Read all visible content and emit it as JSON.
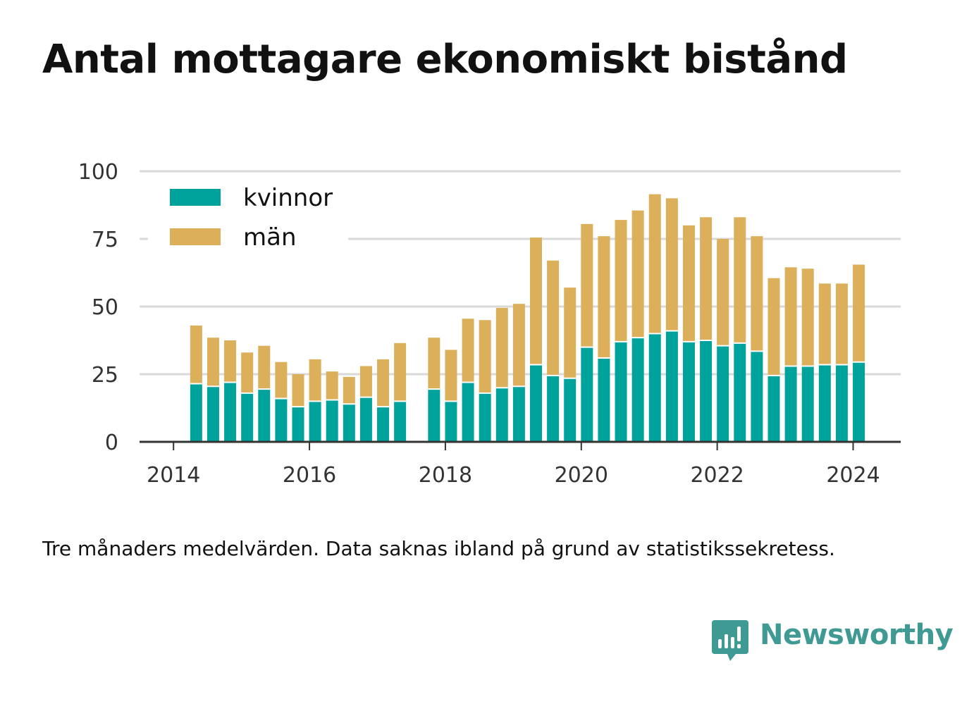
{
  "title": "Antal mottagare ekonomiskt bistånd",
  "footnote": "Tre månaders medelvärden. Data saknas ibland på grund av statistikssekretess.",
  "brand": {
    "name": "Newsworthy",
    "icon": "bar-chart-speech-bubble-icon"
  },
  "colors": {
    "kvinnor": "#00a39b",
    "man": "#dcaf5a",
    "grid": "#d9d9d9",
    "axis": "#333333",
    "tick_text": "#333333"
  },
  "chart_data": {
    "type": "bar",
    "stacked": true,
    "x_tick_labels": [
      "2014",
      "2016",
      "2018",
      "2020",
      "2022",
      "2024"
    ],
    "x_ticks": [
      2014,
      2016,
      2018,
      2020,
      2022,
      2024
    ],
    "xlim": [
      2013.5,
      2024.7
    ],
    "y_tick_labels": [
      "0",
      "25",
      "50",
      "75",
      "100"
    ],
    "y_ticks": [
      0,
      25,
      50,
      75,
      100
    ],
    "ylim": [
      0,
      100
    ],
    "grid": true,
    "legend_position": "top-left",
    "x": [
      "2014-05",
      "2014-08",
      "2014-11",
      "2015-02",
      "2015-05",
      "2015-08",
      "2015-11",
      "2016-02",
      "2016-05",
      "2016-08",
      "2016-11",
      "2017-02",
      "2017-05",
      "2017-11",
      "2018-02",
      "2018-05",
      "2018-08",
      "2018-11",
      "2019-02",
      "2019-05",
      "2019-08",
      "2019-11",
      "2020-02",
      "2020-05",
      "2020-08",
      "2020-11",
      "2021-02",
      "2021-05",
      "2021-08",
      "2021-11",
      "2022-02",
      "2022-05",
      "2022-08",
      "2022-11",
      "2023-02",
      "2023-05",
      "2023-08",
      "2023-11",
      "2024-02"
    ],
    "series": [
      {
        "name": "kvinnor",
        "color": "#00a39b",
        "values": [
          21.5,
          20.5,
          22,
          18,
          19.5,
          16,
          13,
          15,
          15.5,
          14,
          16.5,
          13,
          15,
          19.5,
          15,
          22,
          18,
          20,
          20.5,
          28.5,
          24.5,
          23.5,
          35,
          31,
          37,
          38.5,
          40,
          41,
          37,
          37.5,
          35.5,
          36.5,
          33.5,
          24.5,
          28,
          28,
          28.5,
          28.5,
          29.5
        ]
      },
      {
        "name": "män",
        "color": "#dcaf5a",
        "values": [
          21.5,
          18,
          15.5,
          15,
          16,
          13.5,
          12,
          15.5,
          10.5,
          10,
          11.5,
          17.5,
          21.5,
          19,
          19,
          23.5,
          27,
          29.5,
          30.5,
          47,
          42.5,
          33.5,
          45.5,
          45,
          45,
          47,
          51.5,
          49,
          43,
          45.5,
          39.5,
          46.5,
          42.5,
          36,
          36.5,
          36,
          30,
          30,
          36
        ]
      }
    ]
  }
}
